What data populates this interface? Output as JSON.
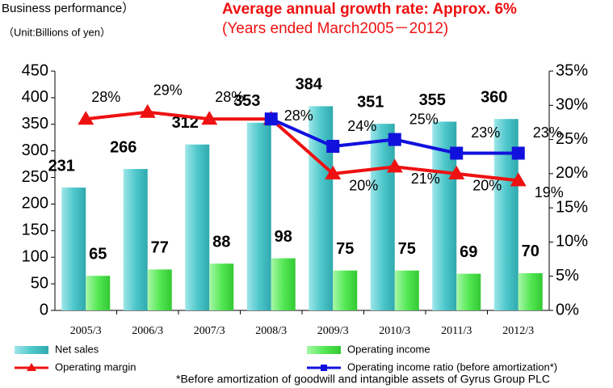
{
  "chart_data": {
    "type": "bar",
    "header": "Business performance）",
    "unit": "（Unit:Billions of yen）",
    "title": "Average annual growth rate: Approx. 6%",
    "subtitle": "(Years ended March2005－2012)",
    "categories": [
      "2005/3",
      "2006/3",
      "2007/3",
      "2008/3",
      "2009/3",
      "2010/3",
      "2011/3",
      "2012/3"
    ],
    "series": [
      {
        "name": "Net sales",
        "type": "bar",
        "color": "#4fc8cc",
        "values": [
          231,
          266,
          312,
          353,
          384,
          351,
          355,
          360
        ]
      },
      {
        "name": "Operating income",
        "type": "bar",
        "color": "#55e855",
        "values": [
          65,
          77,
          88,
          98,
          75,
          75,
          69,
          70
        ]
      },
      {
        "name": "Operating margin",
        "type": "line",
        "axis": "y2",
        "marker": "triangle",
        "color": "#ee1111",
        "values": [
          28,
          29,
          28,
          28,
          20,
          21,
          20,
          19
        ],
        "value_labels": [
          "28%",
          "29%",
          "28%",
          null,
          "20%",
          "21%",
          "20%",
          "19%"
        ]
      },
      {
        "name": "Operating income ratio (before amortization*)",
        "type": "line",
        "axis": "y2",
        "marker": "square",
        "color": "#1111dd",
        "values": [
          null,
          null,
          null,
          28,
          24,
          25,
          23,
          23
        ],
        "value_labels": [
          null,
          null,
          null,
          "28%",
          "24%",
          "25%",
          "23%",
          "23%"
        ]
      }
    ],
    "ylim": [
      0,
      450
    ],
    "yticks": [
      0,
      50,
      100,
      150,
      200,
      250,
      300,
      350,
      400,
      450
    ],
    "y2lim": [
      0,
      35
    ],
    "y2ticks": [
      {
        "value": 0,
        "label": "0%"
      },
      {
        "value": 5,
        "label": "5%"
      },
      {
        "value": 10,
        "label": "10%"
      },
      {
        "value": 15,
        "label": "15%"
      },
      {
        "value": 20,
        "label": "20%"
      },
      {
        "value": 25,
        "label": "25%"
      },
      {
        "value": 30,
        "label": "30%"
      },
      {
        "value": 35,
        "label": "35%"
      }
    ],
    "footnote": "*Before amortization of goodwill and intangible assets of Gyrus Group PLC"
  }
}
